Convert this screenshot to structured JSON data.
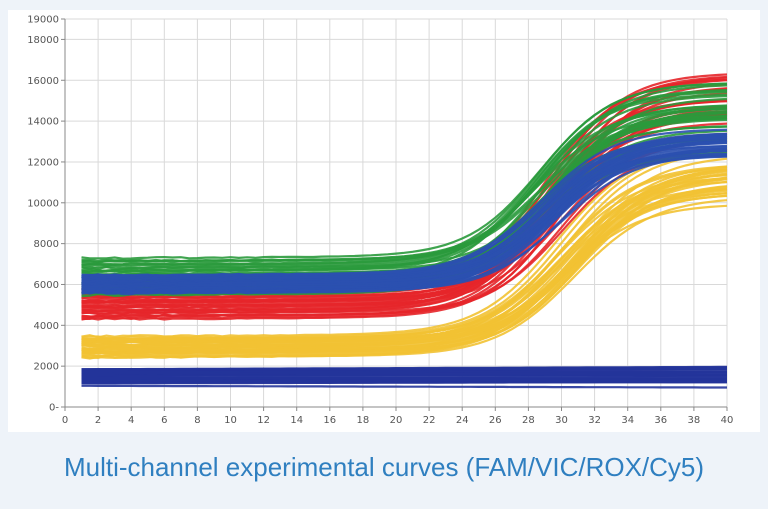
{
  "caption": "Multi-channel experimental curves (FAM/VIC/ROX/Cy5)",
  "chart_data": {
    "type": "line",
    "title": "",
    "xlabel": "",
    "ylabel": "",
    "xlim": [
      0,
      40
    ],
    "ylim": [
      0,
      19000
    ],
    "grid": true,
    "x_ticks": [
      0,
      2,
      4,
      6,
      8,
      10,
      12,
      14,
      16,
      18,
      20,
      22,
      24,
      26,
      28,
      30,
      32,
      34,
      36,
      38,
      40
    ],
    "y_ticks": [
      0,
      2000,
      4000,
      6000,
      8000,
      10000,
      12000,
      14000,
      16000,
      18000,
      19000
    ],
    "x_tick_labels": [
      "0",
      "2",
      "4",
      "6",
      "8",
      "10",
      "12",
      "14",
      "16",
      "18",
      "20",
      "22",
      "24",
      "26",
      "28",
      "30",
      "32",
      "34",
      "36",
      "38",
      "40"
    ],
    "y_tick_labels": [
      "0-",
      "2000",
      "4000",
      "6000",
      "8000",
      "10000",
      "12000",
      "14000",
      "16000",
      "18000",
      "19000"
    ],
    "cycle_range": [
      1,
      40
    ],
    "series": [
      {
        "name": "Cy5",
        "color": "#23349a",
        "baseline_band": [
          1100,
          1900
        ],
        "plateau_band": [
          1100,
          1900
        ],
        "midpoint_cycle": 0,
        "slope": 1
      },
      {
        "name": "VIC",
        "color": "#f2c233",
        "baseline_band": [
          2500,
          3500
        ],
        "plateau_band": [
          9900,
          12800
        ],
        "midpoint_cycle": 30.5,
        "slope": 0.42
      },
      {
        "name": "ROX",
        "color": "#e5262a",
        "baseline_band": [
          4400,
          5900
        ],
        "plateau_band": [
          12300,
          16900
        ],
        "midpoint_cycle": 29.5,
        "slope": 0.45
      },
      {
        "name": "FAM",
        "color": "#2a9a3c",
        "baseline_band": [
          5500,
          7300
        ],
        "plateau_band": [
          12000,
          16200
        ],
        "midpoint_cycle": 29.0,
        "slope": 0.45
      },
      {
        "name": "FAM-overlap",
        "color": "#2b50b0",
        "baseline_band": [
          5600,
          6500
        ],
        "plateau_band": [
          12000,
          13800
        ],
        "midpoint_cycle": 29.3,
        "slope": 0.45
      }
    ]
  }
}
